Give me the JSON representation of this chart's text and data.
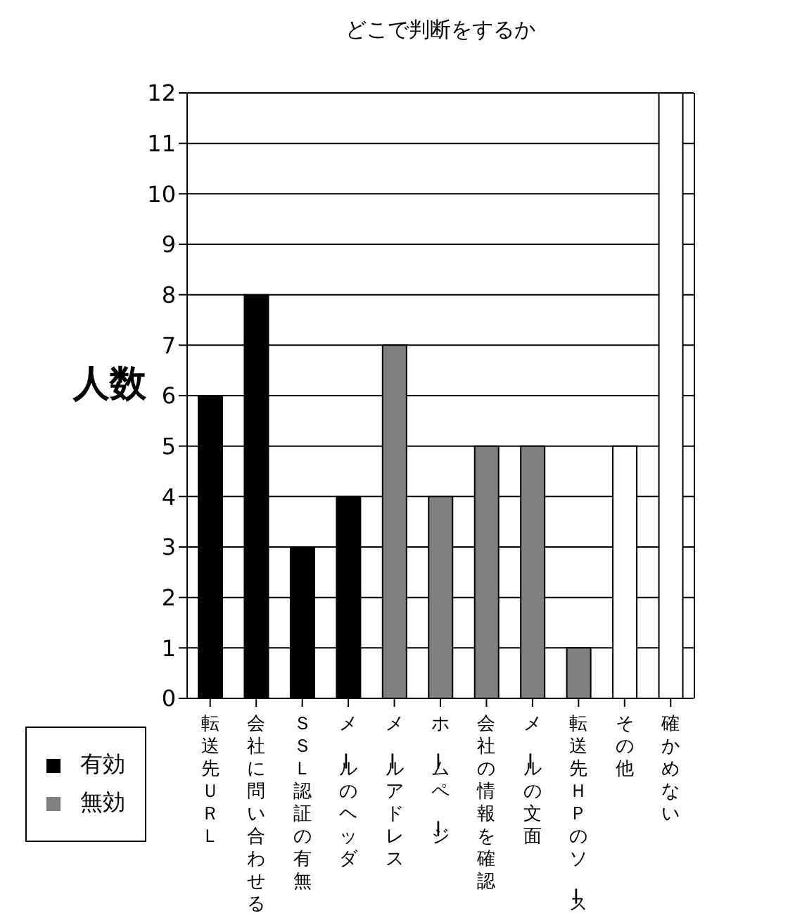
{
  "chart_data": {
    "type": "bar",
    "title": "どこで判断をするか",
    "ylabel": "人数",
    "categories": [
      "転送先ＵＲＬ",
      "会社に問い合わせる",
      "ＳＳＬ認証の有無",
      "メールのヘッダ",
      "メールアドレス",
      "ホームページ",
      "会社の情報を確認",
      "メールの文面",
      "転送先ＨＰのソース",
      "その他",
      "確かめない"
    ],
    "series": [
      {
        "name": "有効",
        "color": "#000000",
        "values": [
          6,
          8,
          3,
          4,
          null,
          null,
          null,
          null,
          null,
          null,
          null
        ]
      },
      {
        "name": "無効",
        "color": "#808080",
        "values": [
          null,
          null,
          null,
          null,
          7,
          4,
          5,
          5,
          1,
          null,
          null
        ]
      },
      {
        "color": "#ffffff",
        "values": [
          null,
          null,
          null,
          null,
          null,
          null,
          null,
          null,
          null,
          5,
          12
        ]
      }
    ],
    "stacked": true,
    "ylim": [
      0,
      12
    ],
    "yticks": [
      0,
      1,
      2,
      3,
      4,
      5,
      6,
      7,
      8,
      9,
      10,
      11,
      12
    ],
    "grid": "y",
    "legend": "bottom left"
  }
}
